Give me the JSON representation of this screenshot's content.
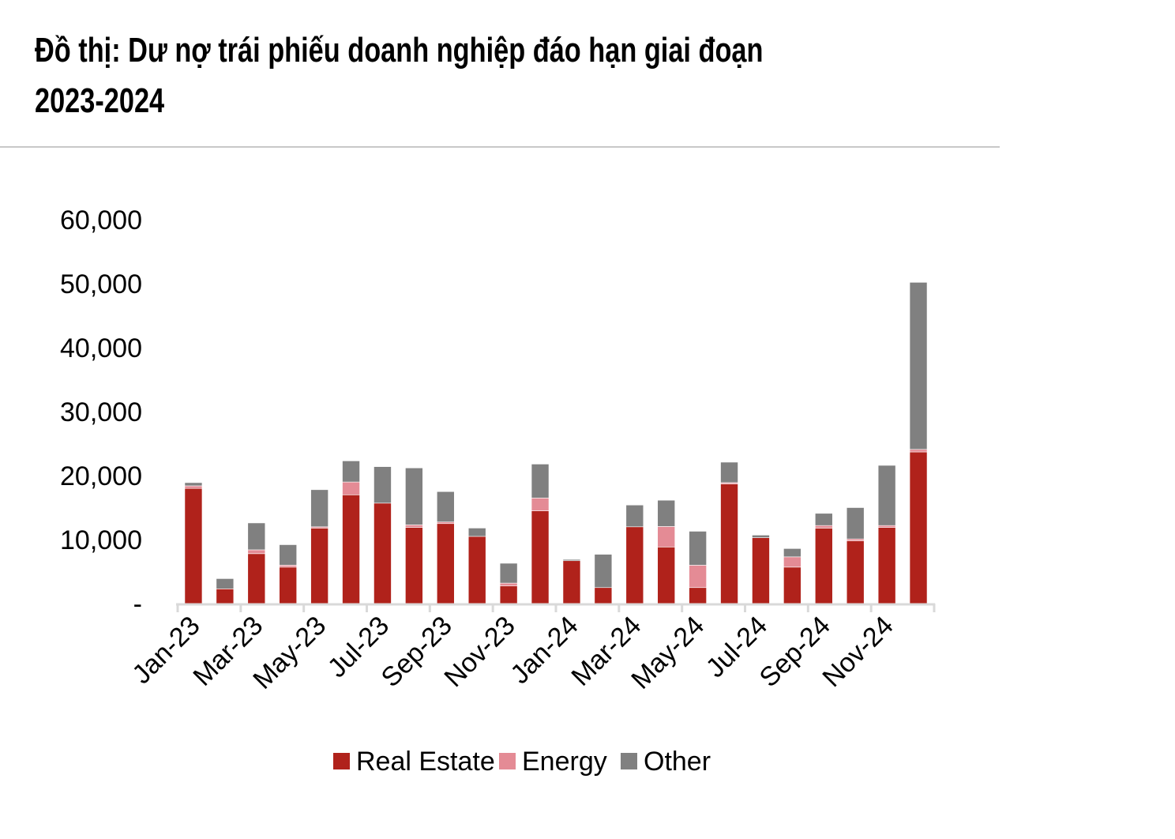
{
  "chart_data": {
    "type": "bar",
    "stacked": true,
    "title": "Đồ thị: Dư nợ trái phiếu doanh nghiệp đáo hạn giai đoạn 2023-2024",
    "xlabel": "",
    "ylabel": "",
    "ylim": [
      0,
      60000
    ],
    "yticks": [
      0,
      10000,
      20000,
      30000,
      40000,
      50000,
      60000
    ],
    "ytick_labels": [
      "-",
      "10,000",
      "20,000",
      "30,000",
      "40,000",
      "50,000",
      "60,000"
    ],
    "categories": [
      "Jan-23",
      "Feb-23",
      "Mar-23",
      "Apr-23",
      "May-23",
      "Jun-23",
      "Jul-23",
      "Aug-23",
      "Sep-23",
      "Oct-23",
      "Nov-23",
      "Dec-23",
      "Jan-24",
      "Feb-24",
      "Mar-24",
      "Apr-24",
      "May-24",
      "Jun-24",
      "Jul-24",
      "Aug-24",
      "Sep-24",
      "Oct-24",
      "Nov-24",
      "Dec-24"
    ],
    "xtick_labels": [
      "Jan-23",
      "Mar-23",
      "May-23",
      "Jul-23",
      "Sep-23",
      "Nov-23",
      "Jan-24",
      "Mar-24",
      "May-24",
      "Jul-24",
      "Sep-24",
      "Nov-24"
    ],
    "series": [
      {
        "name": "Real Estate",
        "color": "#b0221b",
        "values": [
          18000,
          2300,
          7800,
          5700,
          11800,
          17000,
          15700,
          11900,
          12500,
          10500,
          2750,
          14500,
          6700,
          2500,
          12000,
          8850,
          2500,
          18700,
          10300,
          5700,
          11800,
          9800,
          11900,
          23700
        ]
      },
      {
        "name": "Energy",
        "color": "#e48b95",
        "values": [
          400,
          0,
          600,
          300,
          200,
          2000,
          0,
          400,
          250,
          0,
          450,
          2000,
          0,
          0,
          0,
          3200,
          3500,
          200,
          0,
          1600,
          400,
          300,
          300,
          400
        ]
      },
      {
        "name": "Other",
        "color": "#808080",
        "values": [
          500,
          1600,
          4200,
          3200,
          5800,
          3300,
          5700,
          8900,
          4750,
          1300,
          3100,
          5300,
          200,
          5200,
          3400,
          4100,
          5300,
          3200,
          400,
          1300,
          1900,
          4900,
          9400,
          26100
        ]
      }
    ],
    "legend_position": "bottom",
    "grid": false
  },
  "title_line1": "Đồ thị: Dư nợ trái phiếu doanh nghiệp đáo hạn giai đoạn",
  "title_line2": "2023-2024"
}
